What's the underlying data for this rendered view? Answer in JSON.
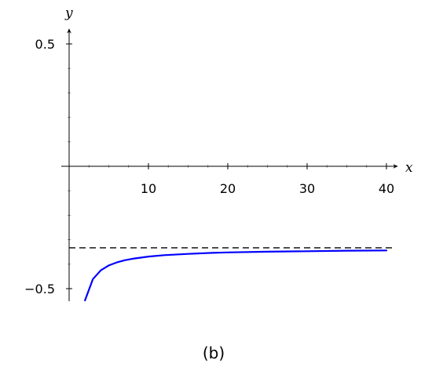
{
  "chart_data": {
    "type": "line",
    "xlabel": "x",
    "ylabel": "y",
    "caption": "(b)",
    "xlim": [
      -0.3,
      41
    ],
    "ylim": [
      -0.55,
      0.55
    ],
    "x_ticks": [
      10,
      20,
      30,
      40
    ],
    "x_tick_labels": [
      "10",
      "20",
      "30",
      "40"
    ],
    "x_minor_ticks": [
      2.5,
      5,
      7.5,
      12.5,
      15,
      17.5,
      22.5,
      25,
      27.5,
      32.5,
      35,
      37.5
    ],
    "y_ticks": [
      -0.5,
      0.5
    ],
    "y_tick_labels": [
      "−0.5",
      "0.5"
    ],
    "y_minor_ticks": [
      -0.4,
      -0.3,
      -0.2,
      -0.1,
      0.1,
      0.2,
      0.3,
      0.4
    ],
    "grid": false,
    "asymptote": {
      "y": -0.333,
      "style": "dashed",
      "color": "#000000"
    },
    "series": [
      {
        "color": "#0000ff",
        "x": [
          2,
          3,
          4,
          5,
          6,
          7,
          8,
          10,
          12,
          15,
          18,
          20,
          25,
          30,
          35,
          40
        ],
        "y": [
          -0.548,
          -0.461,
          -0.425,
          -0.405,
          -0.393,
          -0.384,
          -0.378,
          -0.369,
          -0.363,
          -0.358,
          -0.354,
          -0.352,
          -0.349,
          -0.347,
          -0.345,
          -0.344
        ]
      }
    ]
  }
}
